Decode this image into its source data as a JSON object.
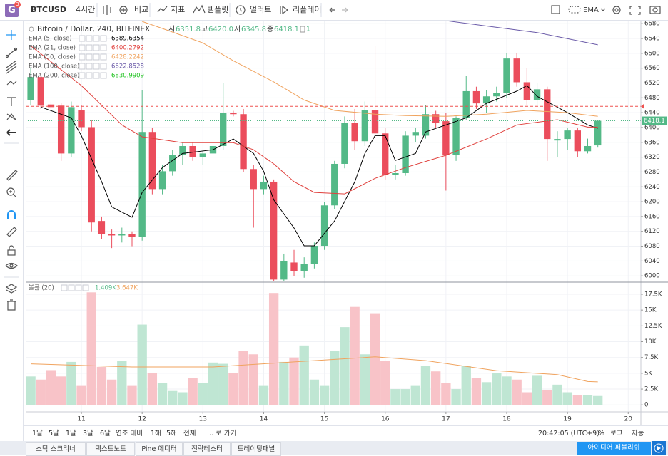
{
  "toolbar": {
    "logo": "G",
    "logo_badge": "3",
    "symbol": "BTCUSD",
    "interval": "4시간",
    "buttons": [
      "비교",
      "지표",
      "템플릿",
      "얼러트",
      "리플레이"
    ],
    "chart_style": "EMA"
  },
  "chart_data": [
    {
      "type": "candlestick",
      "title": "Bitcoin / Dollar, 240, BITFINEX",
      "ohlc": [
        {
          "label": "시",
          "value": "6351.8"
        },
        {
          "label": "고",
          "value": "6420.0"
        },
        {
          "label": "저",
          "value": "6345.8"
        },
        {
          "label": "종",
          "value": "6418.1"
        }
      ],
      "badge": "1",
      "up_color": "#53b987",
      "down_color": "#eb4d5c",
      "candles": [
        [
          6474,
          6560,
          6460,
          6536
        ],
        [
          6536,
          6545,
          6450,
          6459
        ],
        [
          6462,
          6470,
          6440,
          6455
        ],
        [
          6459,
          6465,
          6310,
          6330
        ],
        [
          6330,
          6470,
          6320,
          6455
        ],
        [
          6446,
          6460,
          6390,
          6401
        ],
        [
          6401,
          6420,
          6120,
          6144
        ],
        [
          6148,
          6160,
          6100,
          6113
        ],
        [
          6113,
          6125,
          6075,
          6109
        ],
        [
          6109,
          6130,
          6090,
          6113
        ],
        [
          6113,
          6120,
          6080,
          6106
        ],
        [
          6106,
          6500,
          6095,
          6388
        ],
        [
          6388,
          6400,
          6220,
          6234
        ],
        [
          6234,
          6300,
          6220,
          6282
        ],
        [
          6282,
          6340,
          6270,
          6325
        ],
        [
          6325,
          6360,
          6300,
          6350
        ],
        [
          6350,
          6360,
          6310,
          6321
        ],
        [
          6321,
          6340,
          6300,
          6330
        ],
        [
          6330,
          6370,
          6320,
          6350
        ],
        [
          6350,
          6520,
          6340,
          6440
        ],
        [
          6440,
          6445,
          6430,
          6436
        ],
        [
          6436,
          6450,
          6280,
          6288
        ],
        [
          6288,
          6300,
          6130,
          6234
        ],
        [
          6234,
          6270,
          6220,
          6254
        ],
        [
          6254,
          6260,
          5985,
          5990
        ],
        [
          5990,
          6060,
          5985,
          6040
        ],
        [
          6036,
          6070,
          6000,
          6013
        ],
        [
          6013,
          6050,
          5995,
          6033
        ],
        [
          6033,
          6090,
          6020,
          6081
        ],
        [
          6081,
          6200,
          6070,
          6190
        ],
        [
          6190,
          6310,
          6180,
          6302
        ],
        [
          6302,
          6430,
          6290,
          6413
        ],
        [
          6413,
          6450,
          6340,
          6363
        ],
        [
          6363,
          6470,
          6350,
          6446
        ],
        [
          6446,
          6620,
          6370,
          6384
        ],
        [
          6384,
          6400,
          6260,
          6273
        ],
        [
          6273,
          6300,
          6260,
          6277
        ],
        [
          6277,
          6390,
          6270,
          6378
        ],
        [
          6378,
          6400,
          6360,
          6388
        ],
        [
          6378,
          6460,
          6370,
          6436
        ],
        [
          6436,
          6445,
          6400,
          6413
        ],
        [
          6417,
          6440,
          6230,
          6325
        ],
        [
          6325,
          6430,
          6310,
          6426
        ],
        [
          6426,
          6540,
          6420,
          6498
        ],
        [
          6498,
          6510,
          6450,
          6465
        ],
        [
          6465,
          6500,
          6440,
          6484
        ],
        [
          6484,
          6510,
          6470,
          6494
        ],
        [
          6494,
          6600,
          6480,
          6586
        ],
        [
          6586,
          6600,
          6510,
          6522
        ],
        [
          6522,
          6560,
          6460,
          6474
        ],
        [
          6474,
          6520,
          6460,
          6503
        ],
        [
          6503,
          6510,
          6310,
          6369
        ],
        [
          6365,
          6390,
          6320,
          6369
        ],
        [
          6369,
          6400,
          6340,
          6392
        ],
        [
          6392,
          6400,
          6320,
          6336
        ],
        [
          6336,
          6370,
          6330,
          6350
        ],
        [
          6351.8,
          6420,
          6345.8,
          6418.1
        ]
      ],
      "xlim": [
        -0.5,
        60.25
      ],
      "xticks": [
        {
          "value": 5,
          "label": "11"
        },
        {
          "value": 11,
          "label": "12"
        },
        {
          "value": 17,
          "label": "13"
        },
        {
          "value": 23,
          "label": "14"
        },
        {
          "value": 29,
          "label": "15"
        },
        {
          "value": 35,
          "label": "16"
        },
        {
          "value": 41,
          "label": "17"
        },
        {
          "value": 47,
          "label": "18"
        },
        {
          "value": 53,
          "label": "19"
        },
        {
          "value": 59,
          "label": "20"
        }
      ],
      "ylim": [
        5985,
        6690
      ],
      "yticks": [
        6000,
        6040,
        6080,
        6120,
        6160,
        6200,
        6240,
        6280,
        6320,
        6360,
        6400,
        6440,
        6480,
        6520,
        6560,
        6600,
        6640,
        6680
      ],
      "grid": true,
      "alert_line": 6457,
      "alert_color": "#ef5350",
      "series": [
        {
          "name": "EMA (5, close)",
          "value": "6389.6354",
          "color": "#000000",
          "x": [
            1,
            4,
            5,
            7,
            8,
            10,
            11,
            13,
            15,
            18,
            20,
            22,
            23,
            24,
            26,
            27,
            28,
            30,
            32,
            33,
            34,
            35,
            36,
            38,
            39,
            41,
            43,
            45,
            48,
            49,
            50,
            53,
            55,
            56
          ],
          "values": [
            6455,
            6426,
            6378,
            6254,
            6186,
            6158,
            6225,
            6292,
            6330,
            6340,
            6369,
            6330,
            6282,
            6205,
            6129,
            6081,
            6081,
            6148,
            6254,
            6330,
            6378,
            6378,
            6311,
            6330,
            6388,
            6407,
            6426,
            6465,
            6498,
            6513,
            6484,
            6440,
            6407,
            6398
          ]
        },
        {
          "name": "EMA (21, close)",
          "value": "6400.2792",
          "color": "#e0403c",
          "x": [
            0,
            5,
            9,
            11,
            15,
            20,
            22,
            24,
            26,
            28,
            31,
            34,
            37,
            41,
            45,
            48,
            52,
            55,
            56
          ],
          "values": [
            6620,
            6513,
            6407,
            6375,
            6359,
            6359,
            6340,
            6302,
            6254,
            6225,
            6221,
            6263,
            6292,
            6325,
            6369,
            6407,
            6421,
            6401,
            6401
          ]
        },
        {
          "name": "EMA (50, close)",
          "value": "6428.2242",
          "color": "#f0a35e",
          "x": [
            11,
            13,
            17,
            20,
            24,
            27,
            30,
            34,
            37,
            41,
            45,
            49,
            53,
            56
          ],
          "values": [
            6686,
            6667,
            6628,
            6580,
            6523,
            6474,
            6446,
            6436,
            6432,
            6430,
            6436,
            6446,
            6440,
            6430
          ]
        },
        {
          "name": "EMA (100, close)",
          "value": "6622.8528",
          "color": "#6a5aa8",
          "x": [
            41,
            46,
            50,
            56
          ],
          "values": [
            6688,
            6670,
            6656,
            6623
          ]
        },
        {
          "name": "EMA (200, close)",
          "value": "6830.9909",
          "color": "#22c322"
        }
      ]
    },
    {
      "type": "bar",
      "name": "볼륨 (20)",
      "legend_values": [
        "1.409K",
        "3.647K"
      ],
      "values": [
        4500,
        4000,
        5500,
        4500,
        6800,
        3000,
        17800,
        6000,
        4000,
        7000,
        3000,
        12700,
        5000,
        3500,
        2200,
        2000,
        4300,
        3500,
        6700,
        6500,
        5000,
        8500,
        8000,
        3000,
        17700,
        6800,
        7500,
        9400,
        4000,
        3000,
        8500,
        12300,
        15500,
        8000,
        14500,
        7000,
        2500,
        2500,
        3000,
        6200,
        5300,
        3500,
        2500,
        6200,
        4300,
        3600,
        5000,
        4500,
        4000,
        2000,
        4600,
        2300,
        3200,
        2000,
        1600,
        1600,
        1409
      ],
      "up_color": "#bfe6d3",
      "down_color": "#f8c3c8",
      "ylim": [
        -1100,
        19300
      ],
      "yticks": [
        0,
        {
          "value": 2500,
          "label": "2.5K"
        },
        {
          "value": 5000,
          "label": "5K"
        },
        {
          "value": 7500,
          "label": "7.5K"
        },
        {
          "value": 10000,
          "label": "10K"
        },
        {
          "value": 12500,
          "label": "12.5K"
        },
        {
          "value": 15000,
          "label": "15K"
        },
        {
          "value": 17500,
          "label": "17.5K"
        }
      ],
      "ema": {
        "color": "#f0a35e",
        "x": [
          0,
          10,
          18,
          29,
          34,
          39,
          46,
          52,
          55,
          56
        ],
        "values": [
          6500,
          6000,
          6000,
          7100,
          7600,
          7000,
          5400,
          4800,
          3700,
          3647
        ]
      }
    }
  ],
  "range_bar": {
    "ranges": [
      "1날",
      "5날",
      "1달",
      "3달",
      "6달",
      "연초 대비",
      "1해",
      "5해",
      "전체"
    ],
    "goto": "... 로 가기",
    "clock": "20:42:05 (UTC+9)",
    "options": [
      "%",
      "로그",
      "자동"
    ]
  },
  "bottom_tabs": {
    "tabs": [
      "스탁 스크리너",
      "텍스트노트",
      "Pine 에디터",
      "전략테스터",
      "트레이딩패널"
    ],
    "publish": "아이디어 퍼블리쉬"
  }
}
